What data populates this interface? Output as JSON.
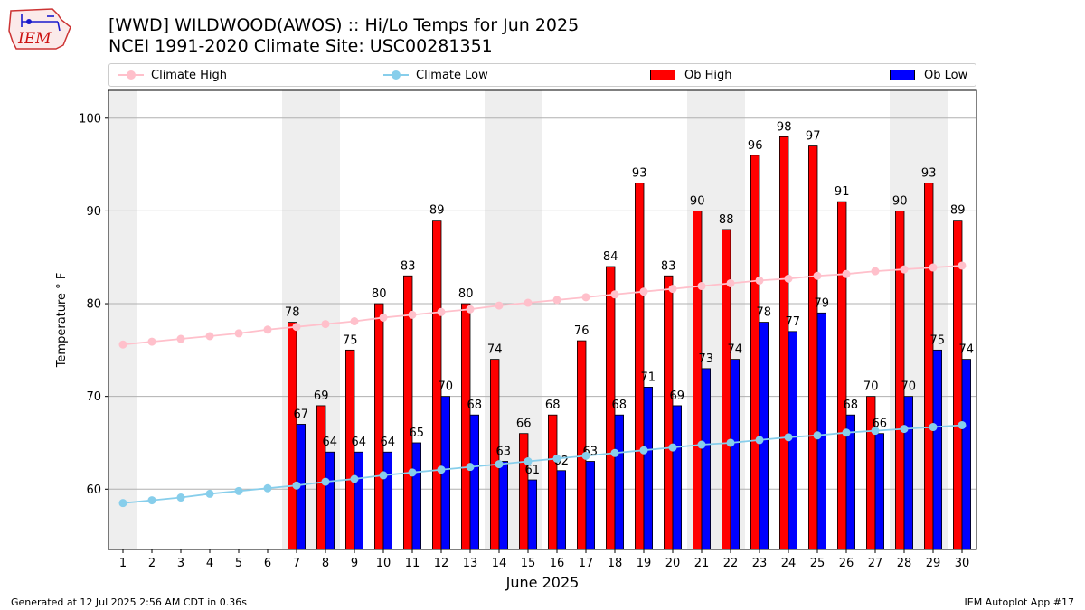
{
  "header": {
    "logo_text": "IEM",
    "title_line1": "[WWD] WILDWOOD(AWOS) :: Hi/Lo Temps for Jun 2025",
    "title_line2": "NCEI 1991-2020 Climate Site: USC00281351"
  },
  "legend": {
    "climate_high": "Climate High",
    "climate_low": "Climate Low",
    "ob_high": "Ob High",
    "ob_low": "Ob Low"
  },
  "colors": {
    "climate_high": "#ffc0cb",
    "climate_low": "#87ceeb",
    "ob_high": "#ff0000",
    "ob_low": "#0000ff",
    "weekend_band": "#eeeeee",
    "grid": "#b0b0b0"
  },
  "footer": {
    "left": "Generated at 12 Jul 2025 2:56 AM CDT in 0.36s",
    "right": "IEM Autoplot App #17"
  },
  "chart_data": {
    "type": "bar",
    "xlabel": "June 2025",
    "ylabel": "Temperature ° F",
    "x": [
      1,
      2,
      3,
      4,
      5,
      6,
      7,
      8,
      9,
      10,
      11,
      12,
      13,
      14,
      15,
      16,
      17,
      18,
      19,
      20,
      21,
      22,
      23,
      24,
      25,
      26,
      27,
      28,
      29,
      30
    ],
    "xlim": [
      0.5,
      30.5
    ],
    "ylim": [
      53.5,
      103
    ],
    "yticks": [
      60,
      70,
      80,
      90,
      100
    ],
    "grid": "horizontal",
    "legend_position": "top",
    "shaded_days": [
      1,
      7,
      8,
      14,
      15,
      21,
      22,
      28,
      29
    ],
    "series": [
      {
        "name": "Ob High",
        "kind": "bar",
        "values": [
          null,
          null,
          null,
          null,
          null,
          null,
          78,
          69,
          75,
          80,
          83,
          89,
          80,
          74,
          66,
          68,
          76,
          84,
          93,
          83,
          90,
          88,
          96,
          98,
          97,
          91,
          70,
          90,
          93,
          89
        ]
      },
      {
        "name": "Ob Low",
        "kind": "bar",
        "values": [
          null,
          null,
          null,
          null,
          null,
          null,
          67,
          64,
          64,
          64,
          65,
          70,
          68,
          63,
          61,
          62,
          63,
          68,
          71,
          69,
          73,
          74,
          78,
          77,
          79,
          68,
          66,
          70,
          75,
          74
        ]
      },
      {
        "name": "Climate High",
        "kind": "line",
        "values": [
          75.6,
          75.9,
          76.2,
          76.5,
          76.8,
          77.2,
          77.5,
          77.8,
          78.1,
          78.5,
          78.8,
          79.1,
          79.4,
          79.8,
          80.1,
          80.4,
          80.7,
          81.0,
          81.3,
          81.6,
          81.9,
          82.2,
          82.5,
          82.7,
          83.0,
          83.2,
          83.5,
          83.7,
          83.9,
          84.1
        ]
      },
      {
        "name": "Climate Low",
        "kind": "line",
        "values": [
          58.5,
          58.8,
          59.1,
          59.5,
          59.8,
          60.1,
          60.4,
          60.8,
          61.1,
          61.5,
          61.8,
          62.1,
          62.4,
          62.7,
          63.0,
          63.3,
          63.6,
          63.9,
          64.2,
          64.5,
          64.8,
          65.0,
          65.3,
          65.6,
          65.8,
          66.1,
          66.3,
          66.5,
          66.7,
          66.9
        ]
      }
    ]
  }
}
